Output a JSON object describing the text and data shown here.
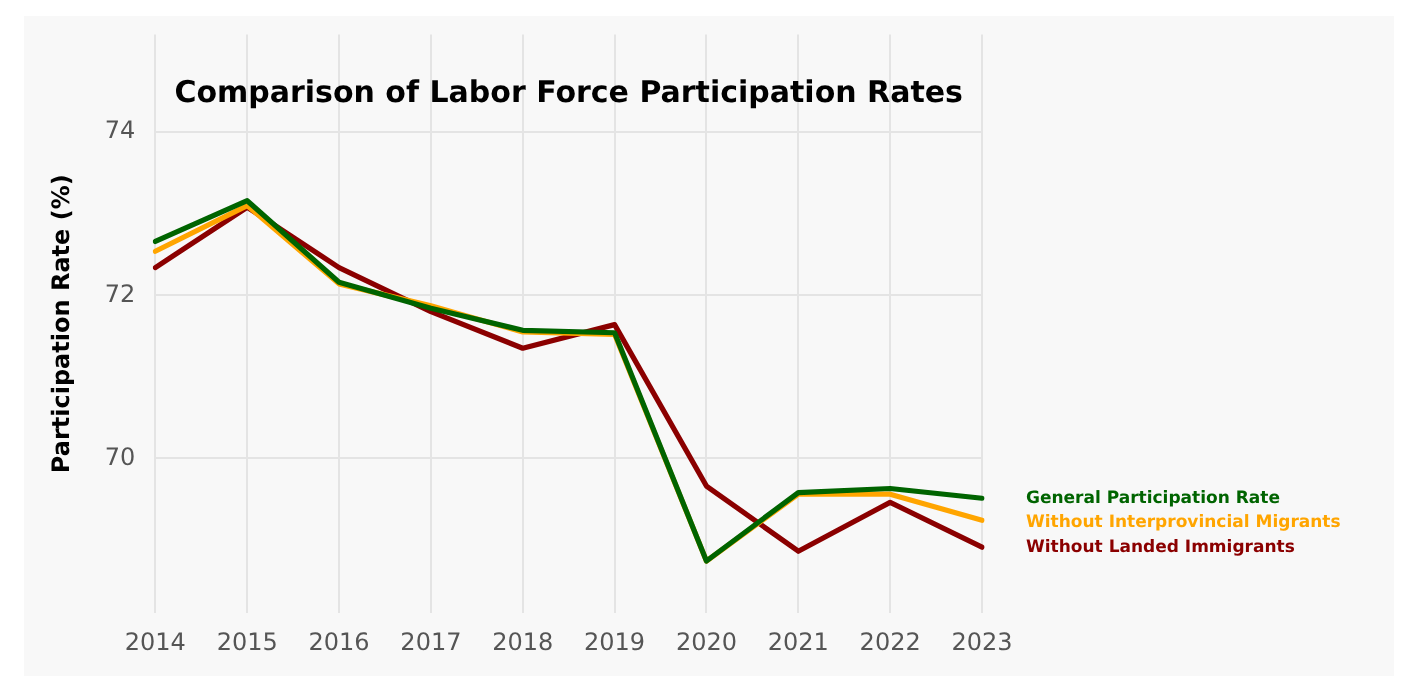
{
  "chart_data": {
    "type": "line",
    "title": "Comparison of Labor Force Participation Rates",
    "ylabel": "Participation Rate (%)",
    "categories": [
      "2014",
      "2015",
      "2016",
      "2017",
      "2018",
      "2019",
      "2020",
      "2021",
      "2022",
      "2023"
    ],
    "series": [
      {
        "name": "General Participation Rate",
        "color": "#006400",
        "values": [
          72.66,
          73.16,
          72.16,
          71.84,
          71.57,
          71.54,
          68.74,
          69.58,
          69.63,
          69.51
        ]
      },
      {
        "name": "Without Interprovincial Migrants",
        "color": "#ffa500",
        "values": [
          72.54,
          73.1,
          72.14,
          71.87,
          71.55,
          71.52,
          68.74,
          69.56,
          69.56,
          69.24
        ]
      },
      {
        "name": "Without Landed Immigrants",
        "color": "#8b0000",
        "values": [
          72.34,
          73.08,
          72.34,
          71.8,
          71.35,
          71.64,
          69.66,
          68.86,
          69.46,
          68.91
        ]
      }
    ],
    "ylim": [
      68.1,
      75.2
    ],
    "yticks": [
      70,
      72,
      74
    ],
    "grid": true,
    "marker": "none",
    "line_style": "solid"
  }
}
